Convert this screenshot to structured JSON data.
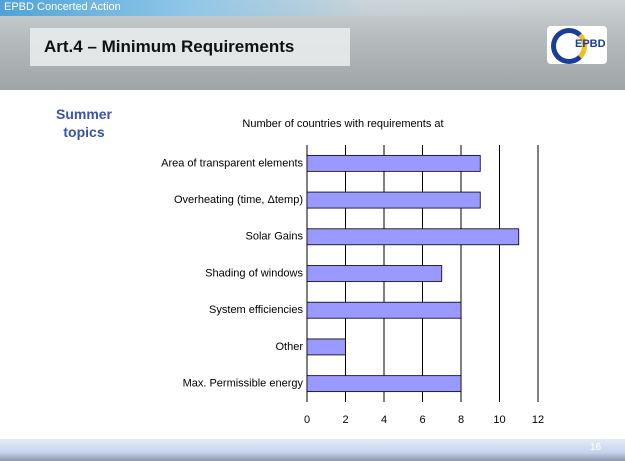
{
  "slide": {
    "organization": "EPBD Concerted Action",
    "title": "Art.4 – Minimum Requirements",
    "logo": "EPBD",
    "side_label": "Summer topics",
    "page_number": "16"
  },
  "chart_data": {
    "type": "bar",
    "orientation": "horizontal",
    "title": "Number of countries with requirements at",
    "categories": [
      "Area of transparent elements",
      "Overheating (time, Δtemp)",
      "Solar Gains",
      "Shading of windows",
      "System efficiencies",
      "Other",
      "Max. Permissible energy"
    ],
    "values": [
      9,
      9,
      11,
      7,
      8,
      2,
      8
    ],
    "color": "#9999ff",
    "xlim": [
      0,
      12
    ],
    "xticks": [
      0,
      2,
      4,
      6,
      8,
      10,
      12
    ],
    "grid": true
  }
}
